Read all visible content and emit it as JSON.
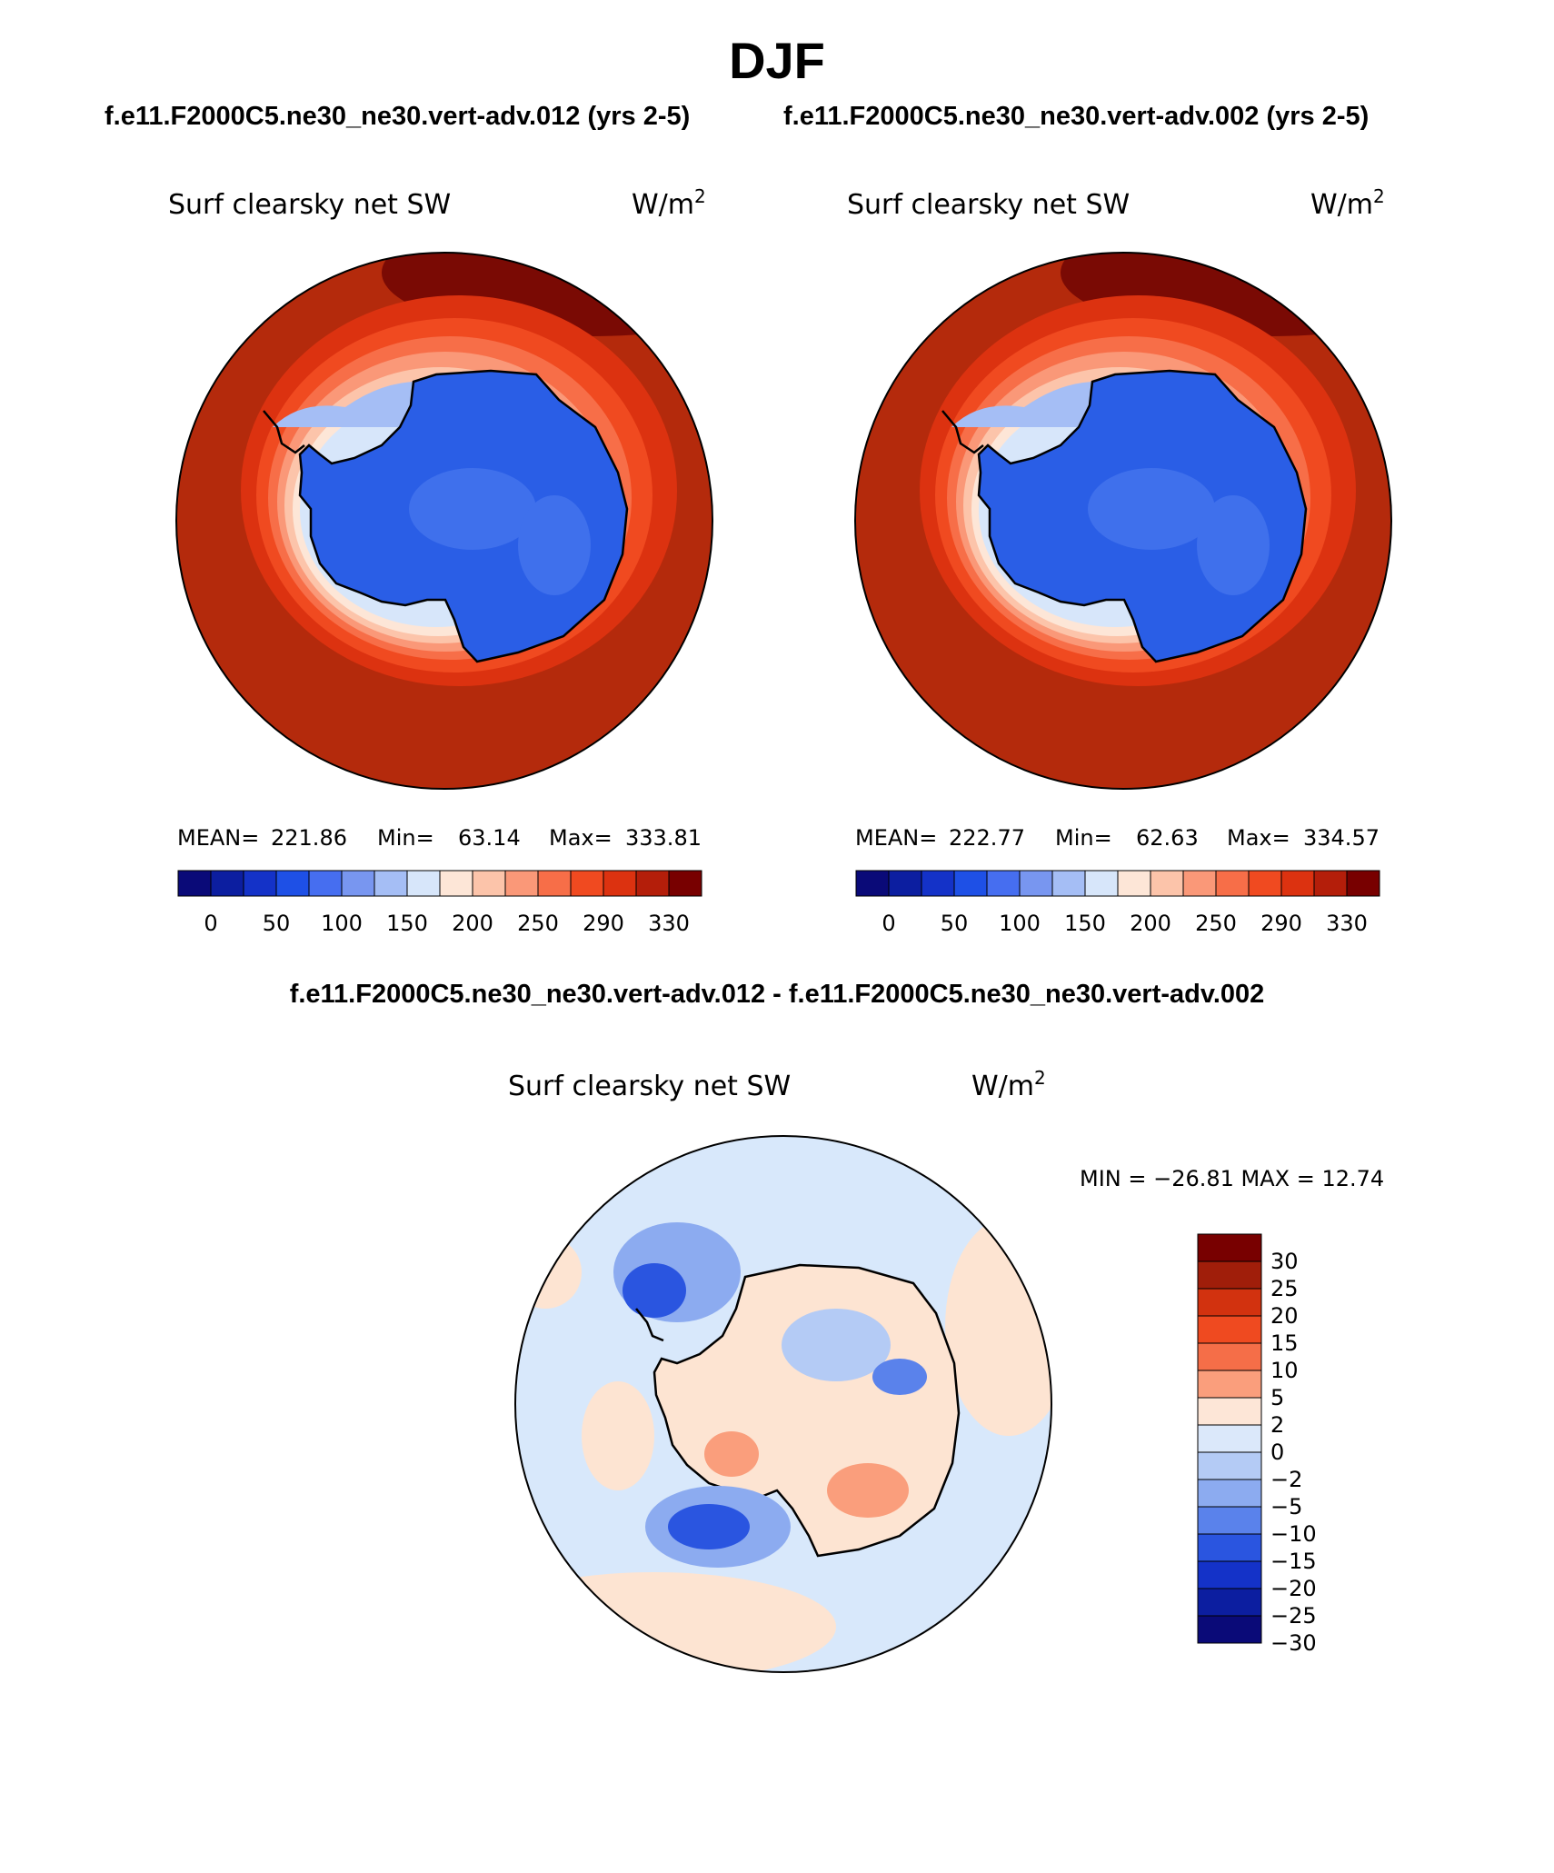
{
  "title": "DJF",
  "panels": [
    {
      "case_label": "f.e11.F2000C5.ne30_ne30.vert-adv.012 (yrs 2-5)",
      "variable": "Surf clearsky net SW",
      "units_base": "W/m",
      "units_exp": "2",
      "stats": {
        "mean_label": "MEAN=",
        "mean": "221.86",
        "min_label": "Min=",
        "min": "63.14",
        "max_label": "Max=",
        "max": "333.81"
      }
    },
    {
      "case_label": "f.e11.F2000C5.ne30_ne30.vert-adv.002 (yrs 2-5)",
      "variable": "Surf clearsky net SW",
      "units_base": "W/m",
      "units_exp": "2",
      "stats": {
        "mean_label": "MEAN=",
        "mean": "222.77",
        "min_label": "Min=",
        "min": "62.63",
        "max_label": "Max=",
        "max": "334.57"
      }
    }
  ],
  "colorbar_abs": {
    "colors": [
      "#0a0a78",
      "#0c1ea0",
      "#1432c8",
      "#1e50e6",
      "#466ef0",
      "#7896f0",
      "#a5bef5",
      "#d7e6fa",
      "#fde6d7",
      "#fcc4aa",
      "#fa9878",
      "#f76e48",
      "#f04a20",
      "#dc3210",
      "#b41e0a",
      "#780000"
    ],
    "tick_labels": [
      "0",
      "50",
      "100",
      "150",
      "200",
      "250",
      "290",
      "330"
    ]
  },
  "difference": {
    "title": "f.e11.F2000C5.ne30_ne30.vert-adv.012 - f.e11.F2000C5.ne30_ne30.vert-adv.002",
    "variable": "Surf clearsky net SW",
    "units_base": "W/m",
    "units_exp": "2",
    "min_max_text": "MIN = −26.81  MAX =   12.74",
    "colorbar": {
      "colors_top_to_bottom": [
        "#780000",
        "#a01e0a",
        "#d2320f",
        "#ef4a20",
        "#f56e48",
        "#fa9e7c",
        "#fde6d7",
        "#dbe8fa",
        "#b4cbf5",
        "#8cabf0",
        "#5a82eb",
        "#2a55e0",
        "#1432c8",
        "#0c1ea0",
        "#0a0a78"
      ],
      "tick_labels": [
        "30",
        "25",
        "20",
        "15",
        "10",
        "5",
        "2",
        "0",
        "−2",
        "−5",
        "−10",
        "−15",
        "−20",
        "−25",
        "−30"
      ]
    }
  },
  "map_colors": {
    "ocean_abs": "#b42a0c",
    "dark_rim": "#7a0a04",
    "coast_line": "#000000",
    "land_abs": "#2a5ee6",
    "land_abs_light": "#3f70ec",
    "diff_background": "#d8e8fb",
    "diff_positive": "#fde4d2"
  }
}
